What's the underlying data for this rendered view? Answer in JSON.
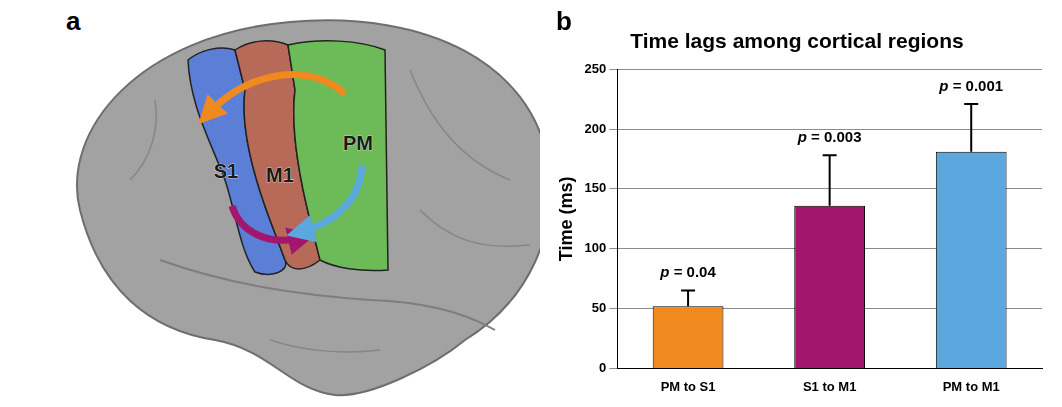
{
  "panel_letters": [
    "a",
    "b"
  ],
  "diagram": {
    "regions": [
      {
        "label": "S1",
        "color": "#5b7fd6"
      },
      {
        "label": "M1",
        "color": "#b86a58"
      },
      {
        "label": "PM",
        "color": "#6cbb58"
      }
    ]
  },
  "chart_data": {
    "type": "bar",
    "title": "Time lags among cortical regions",
    "y_label": "Time (ms)",
    "categories": [
      "PM to S1",
      "S1 to M1",
      "PM to M1"
    ],
    "values": [
      52,
      136,
      181
    ],
    "errors": [
      13,
      42,
      40
    ],
    "colors": [
      "#f0891f",
      "#a3166d",
      "#5aa8de"
    ],
    "annotations": [
      "p = 0.04",
      "p = 0.003",
      "p = 0.001"
    ],
    "ylim": [
      0,
      250
    ],
    "yticks": [
      0,
      50,
      100,
      150,
      200,
      250
    ],
    "grid": true
  }
}
